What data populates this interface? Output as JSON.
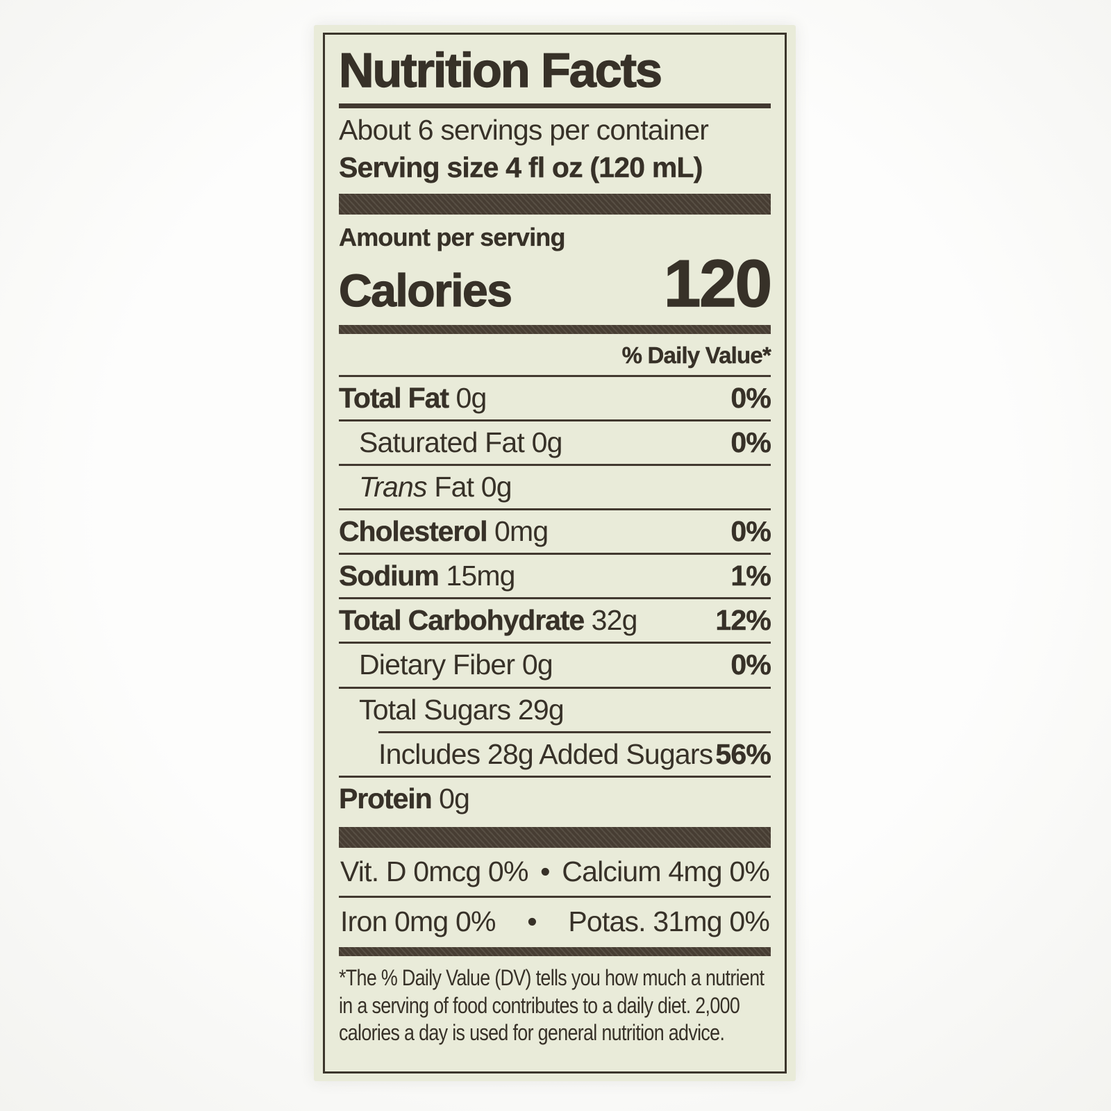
{
  "label": {
    "title": "Nutrition Facts",
    "servings_per_container": "About 6 servings per container",
    "serving_size_line": "Serving size 4 fl oz (120 mL)",
    "amount_per_serving": "Amount per serving",
    "calories_label": "Calories",
    "calories_value": "120",
    "daily_value_header": "% Daily Value*",
    "nutrient_rows": [
      {
        "name": "Total Fat",
        "amount": "0g",
        "dv": "0%"
      },
      {
        "name": "Saturated Fat",
        "amount": "0g",
        "dv": "0%"
      },
      {
        "name_italic": "Trans",
        "name": "Fat",
        "amount": "0g",
        "dv": ""
      },
      {
        "name": "Cholesterol",
        "amount": "0mg",
        "dv": "0%"
      },
      {
        "name": "Sodium",
        "amount": "15mg",
        "dv": "1%"
      },
      {
        "name": "Total Carbohydrate",
        "amount": "32g",
        "dv": "12%"
      },
      {
        "name": "Dietary Fiber",
        "amount": "0g",
        "dv": "0%"
      },
      {
        "name": "Total Sugars",
        "amount": "29g",
        "dv": ""
      },
      {
        "name": "Includes 28g Added Sugars",
        "amount": "",
        "dv": "56%"
      },
      {
        "name": "Protein",
        "amount": "0g",
        "dv": ""
      }
    ],
    "micronutrients": {
      "bullet": "•",
      "row1_left": "Vit. D 0mcg 0%",
      "row1_right": "Calcium 4mg 0%",
      "row2_left": "Iron 0mg 0%",
      "row2_right": "Potas. 31mg 0%"
    },
    "footnote_lines": [
      "*The % Daily Value (DV) tells you how much a nutrient",
      "in a serving of food contributes to a daily diet. 2,000",
      "calories a day is used for general nutrition advice."
    ]
  },
  "colors": {
    "paper": "#e9ebd9",
    "ink": "#373128",
    "bar": "#473d33"
  }
}
